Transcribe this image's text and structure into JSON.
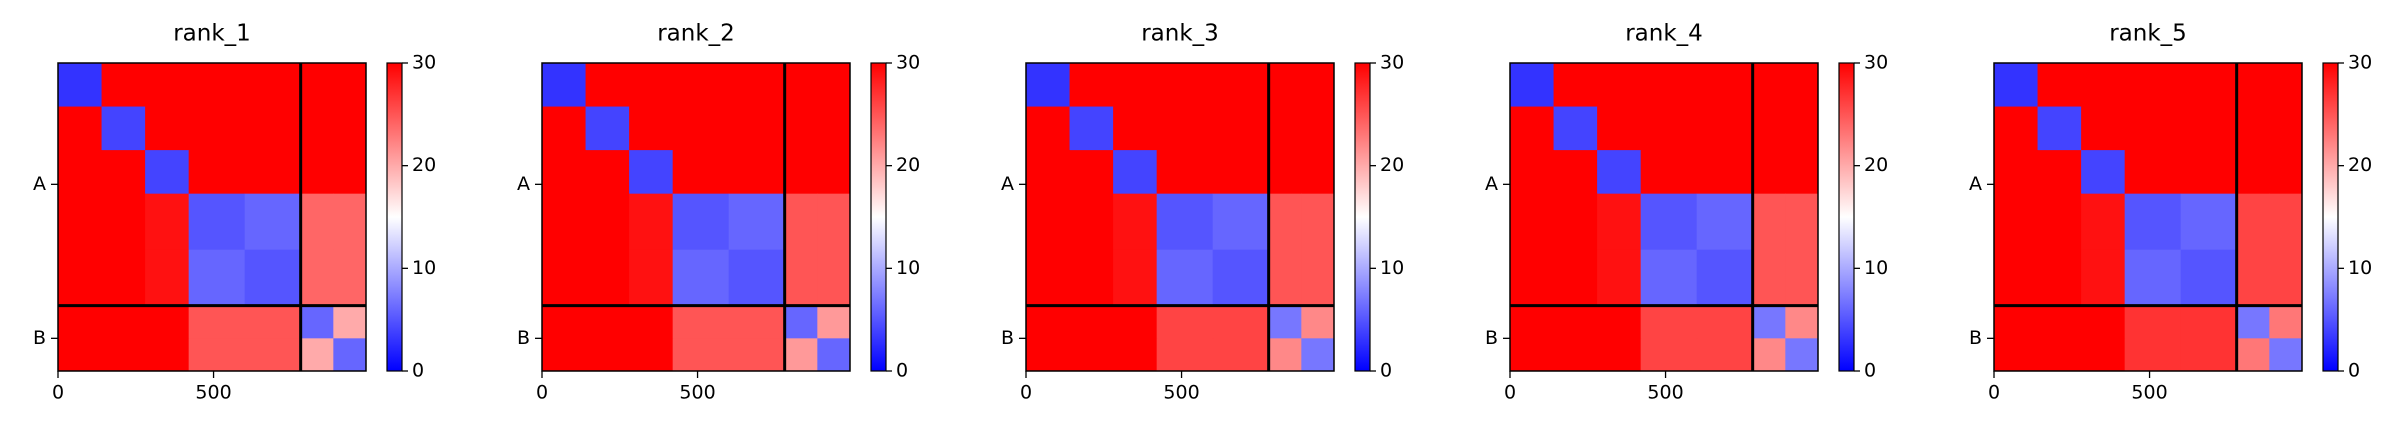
{
  "chart_data": [
    {
      "type": "heatmap",
      "title": "rank_1",
      "bins": [
        0,
        140,
        280,
        420,
        600,
        780,
        885,
        990
      ],
      "z": [
        [
          3,
          30,
          30,
          30,
          30,
          30,
          30
        ],
        [
          30,
          4,
          30,
          30,
          30,
          30,
          30
        ],
        [
          30,
          30,
          4,
          30,
          30,
          30,
          30
        ],
        [
          30,
          30,
          29,
          5,
          6,
          24,
          24
        ],
        [
          30,
          30,
          29,
          6,
          5,
          24,
          24
        ],
        [
          30,
          30,
          30,
          25,
          25,
          6,
          20
        ],
        [
          30,
          30,
          30,
          25,
          25,
          20,
          6
        ]
      ],
      "boundaries": [
        780
      ],
      "xlim": [
        0,
        990
      ],
      "ylim": [
        990,
        0
      ],
      "xticks": [
        0,
        500
      ],
      "yticks": [
        {
          "value": 390,
          "label": "A"
        },
        {
          "value": 885,
          "label": "B"
        }
      ],
      "clim": [
        0,
        30
      ],
      "cticks": [
        0,
        10,
        20,
        30
      ],
      "cmap": [
        "#0000ff",
        "#ffffff",
        "#ff0000"
      ]
    },
    {
      "type": "heatmap",
      "title": "rank_2",
      "bins": [
        0,
        140,
        280,
        420,
        600,
        780,
        885,
        990
      ],
      "z": [
        [
          3,
          30,
          30,
          30,
          30,
          30,
          30
        ],
        [
          30,
          4,
          30,
          30,
          30,
          30,
          30
        ],
        [
          30,
          30,
          4,
          30,
          30,
          30,
          30
        ],
        [
          30,
          30,
          29,
          5,
          6,
          25,
          25
        ],
        [
          30,
          30,
          29,
          6,
          5,
          25,
          25
        ],
        [
          30,
          30,
          30,
          25,
          25,
          6,
          21
        ],
        [
          30,
          30,
          30,
          25,
          25,
          21,
          6
        ]
      ],
      "boundaries": [
        780
      ],
      "xlim": [
        0,
        990
      ],
      "ylim": [
        990,
        0
      ],
      "xticks": [
        0,
        500
      ],
      "yticks": [
        {
          "value": 390,
          "label": "A"
        },
        {
          "value": 885,
          "label": "B"
        }
      ],
      "clim": [
        0,
        30
      ],
      "cticks": [
        0,
        10,
        20,
        30
      ],
      "cmap": [
        "#0000ff",
        "#ffffff",
        "#ff0000"
      ]
    },
    {
      "type": "heatmap",
      "title": "rank_3",
      "bins": [
        0,
        140,
        280,
        420,
        600,
        780,
        885,
        990
      ],
      "z": [
        [
          3,
          30,
          30,
          30,
          30,
          30,
          30
        ],
        [
          30,
          4,
          30,
          30,
          30,
          30,
          30
        ],
        [
          30,
          30,
          4,
          30,
          30,
          30,
          30
        ],
        [
          30,
          30,
          29,
          5,
          6,
          25,
          25
        ],
        [
          30,
          30,
          29,
          6,
          5,
          25,
          25
        ],
        [
          30,
          30,
          30,
          26,
          26,
          7,
          22
        ],
        [
          30,
          30,
          30,
          26,
          26,
          22,
          7
        ]
      ],
      "boundaries": [
        780
      ],
      "xlim": [
        0,
        990
      ],
      "ylim": [
        990,
        0
      ],
      "xticks": [
        0,
        500
      ],
      "yticks": [
        {
          "value": 390,
          "label": "A"
        },
        {
          "value": 885,
          "label": "B"
        }
      ],
      "clim": [
        0,
        30
      ],
      "cticks": [
        0,
        10,
        20,
        30
      ],
      "cmap": [
        "#0000ff",
        "#ffffff",
        "#ff0000"
      ]
    },
    {
      "type": "heatmap",
      "title": "rank_4",
      "bins": [
        0,
        140,
        280,
        420,
        600,
        780,
        885,
        990
      ],
      "z": [
        [
          3,
          30,
          30,
          30,
          30,
          30,
          30
        ],
        [
          30,
          4,
          30,
          30,
          30,
          30,
          30
        ],
        [
          30,
          30,
          4,
          30,
          30,
          30,
          30
        ],
        [
          30,
          30,
          29,
          5,
          6,
          25,
          25
        ],
        [
          30,
          30,
          29,
          6,
          5,
          25,
          25
        ],
        [
          30,
          30,
          30,
          26,
          26,
          7,
          22
        ],
        [
          30,
          30,
          30,
          26,
          26,
          22,
          7
        ]
      ],
      "boundaries": [
        780
      ],
      "xlim": [
        0,
        990
      ],
      "ylim": [
        990,
        0
      ],
      "xticks": [
        0,
        500
      ],
      "yticks": [
        {
          "value": 390,
          "label": "A"
        },
        {
          "value": 885,
          "label": "B"
        }
      ],
      "clim": [
        0,
        30
      ],
      "cticks": [
        0,
        10,
        20,
        30
      ],
      "cmap": [
        "#0000ff",
        "#ffffff",
        "#ff0000"
      ]
    },
    {
      "type": "heatmap",
      "title": "rank_5",
      "bins": [
        0,
        140,
        280,
        420,
        600,
        780,
        885,
        990
      ],
      "z": [
        [
          3,
          30,
          30,
          30,
          30,
          30,
          30
        ],
        [
          30,
          4,
          30,
          30,
          30,
          30,
          30
        ],
        [
          30,
          30,
          4,
          30,
          30,
          30,
          30
        ],
        [
          30,
          30,
          29,
          5,
          6,
          26,
          26
        ],
        [
          30,
          30,
          29,
          6,
          5,
          26,
          26
        ],
        [
          30,
          30,
          30,
          27,
          27,
          7,
          23
        ],
        [
          30,
          30,
          30,
          27,
          27,
          23,
          7
        ]
      ],
      "boundaries": [
        780
      ],
      "xlim": [
        0,
        990
      ],
      "ylim": [
        990,
        0
      ],
      "xticks": [
        0,
        500
      ],
      "yticks": [
        {
          "value": 390,
          "label": "A"
        },
        {
          "value": 885,
          "label": "B"
        }
      ],
      "clim": [
        0,
        30
      ],
      "cticks": [
        0,
        10,
        20,
        30
      ],
      "cmap": [
        "#0000ff",
        "#ffffff",
        "#ff0000"
      ]
    }
  ]
}
